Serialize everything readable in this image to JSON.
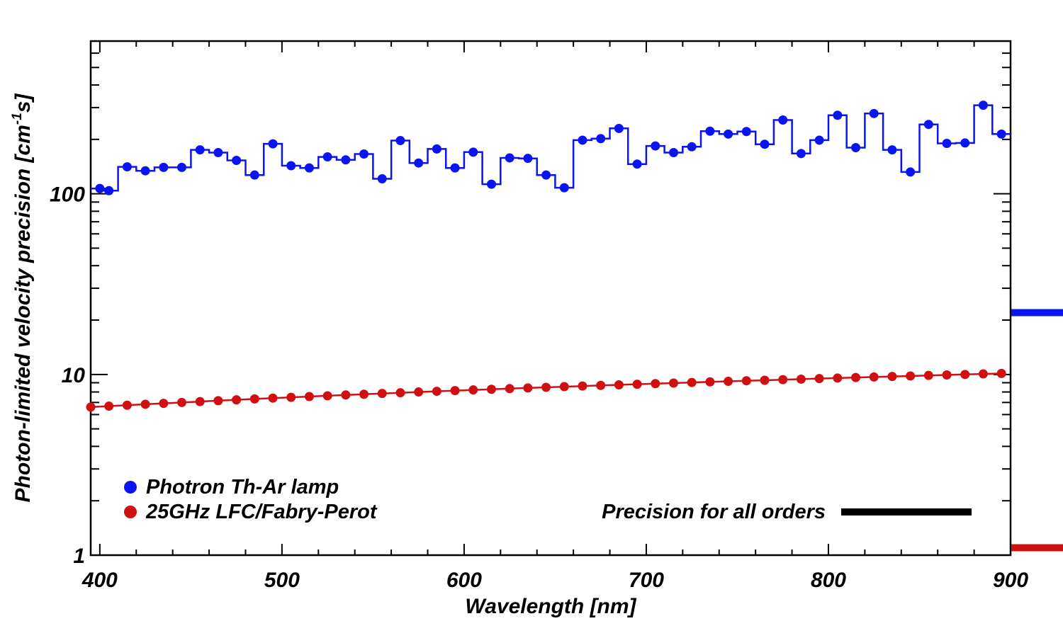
{
  "chart_data": {
    "type": "line",
    "xlabel": "Wavelength [nm]",
    "ylabel_parts": [
      "Photon-limited velocity precision [cm",
      "-1",
      "s]"
    ],
    "xlim": [
      395,
      900
    ],
    "ylim": [
      1,
      700
    ],
    "yscale": "log",
    "x_ticks": [
      400,
      500,
      600,
      700,
      800,
      900
    ],
    "x_tick_labels": [
      "400",
      "500",
      "600",
      "700",
      "800",
      "900"
    ],
    "y_ticks": [
      1,
      10,
      100
    ],
    "y_tick_labels": [
      "1",
      "10",
      "100"
    ],
    "colors": {
      "thar": "#0a14f0",
      "lfc": "#d01010",
      "all_orders": "#000000"
    },
    "series": [
      {
        "name": "Photron Th-Ar lamp",
        "style": "steps-with-markers",
        "x": [
          400,
          405,
          415,
          425,
          435,
          445,
          455,
          465,
          475,
          485,
          495,
          505,
          515,
          525,
          535,
          545,
          555,
          565,
          575,
          585,
          595,
          605,
          615,
          625,
          635,
          645,
          655,
          665,
          675,
          685,
          695,
          705,
          715,
          725,
          735,
          745,
          755,
          765,
          775,
          785,
          795,
          805,
          815,
          825,
          835,
          845,
          855,
          865,
          875,
          885,
          895
        ],
        "values": [
          107,
          104,
          141,
          134,
          140,
          140,
          175,
          169,
          153,
          127,
          189,
          143,
          139,
          160,
          154,
          166,
          121,
          197,
          148,
          177,
          139,
          170,
          113,
          158,
          157,
          127,
          108,
          198,
          202,
          230,
          146,
          184,
          169,
          182,
          222,
          214,
          221,
          188,
          256,
          167,
          198,
          272,
          180,
          278,
          175,
          132,
          242,
          190,
          191,
          309,
          214
        ]
      },
      {
        "name": "25GHz LFC/Fabry-Perot",
        "style": "line-with-markers",
        "x": [
          395,
          405,
          415,
          425,
          435,
          445,
          455,
          465,
          475,
          485,
          495,
          505,
          515,
          525,
          535,
          545,
          555,
          565,
          575,
          585,
          595,
          605,
          615,
          625,
          635,
          645,
          655,
          665,
          675,
          685,
          695,
          705,
          715,
          725,
          735,
          745,
          755,
          765,
          775,
          785,
          795,
          805,
          815,
          825,
          835,
          845,
          855,
          865,
          875,
          885,
          895
        ],
        "values": [
          6.6,
          6.68,
          6.76,
          6.84,
          6.92,
          7.0,
          7.08,
          7.16,
          7.24,
          7.32,
          7.4,
          7.47,
          7.55,
          7.62,
          7.7,
          7.77,
          7.85,
          7.92,
          8.0,
          8.07,
          8.14,
          8.21,
          8.28,
          8.35,
          8.42,
          8.49,
          8.56,
          8.63,
          8.7,
          8.76,
          8.83,
          8.9,
          8.96,
          9.03,
          9.1,
          9.16,
          9.23,
          9.29,
          9.36,
          9.42,
          9.49,
          9.55,
          9.62,
          9.68,
          9.75,
          9.81,
          9.88,
          9.94,
          10.0,
          10.07,
          10.13
        ]
      }
    ],
    "all_orders_markers": [
      {
        "series": "Photron Th-Ar lamp",
        "value": 22
      },
      {
        "series": "25GHz LFC/Fabry-Perot",
        "value": 1.1
      }
    ],
    "legend": {
      "items": [
        {
          "label": "Photron Th-Ar lamp",
          "color": "#0a14f0"
        },
        {
          "label": "25GHz LFC/Fabry-Perot",
          "color": "#d01010"
        }
      ],
      "all_orders_label": "Precision for all orders",
      "placement": "bottom-left"
    }
  }
}
